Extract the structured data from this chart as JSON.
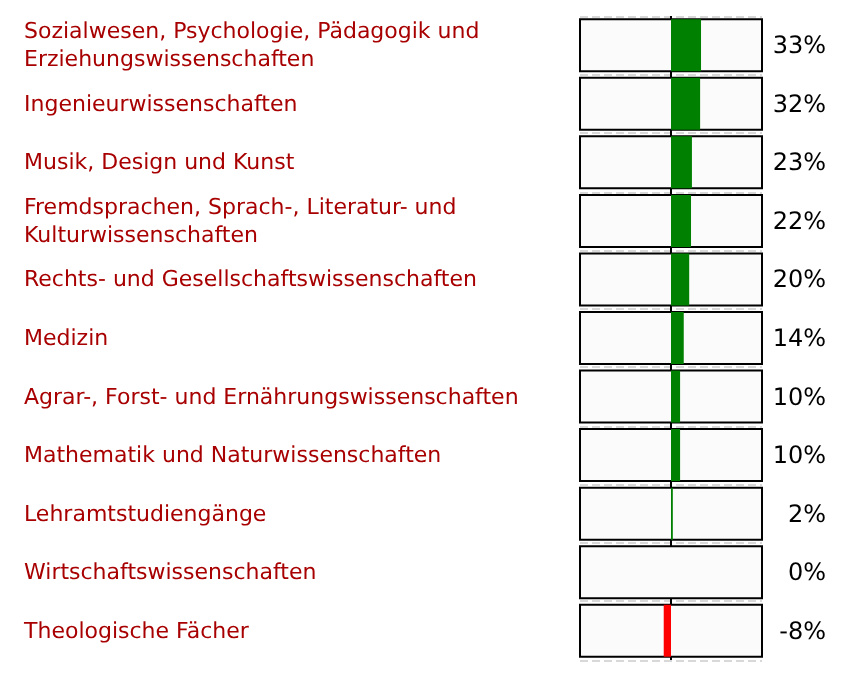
{
  "chart_data": {
    "type": "bar",
    "orientation": "horizontal",
    "categories": [
      "Sozialwesen, Psychologie, Pädagogik und Erziehungswissenschaften",
      "Ingenieurwissenschaften",
      "Musik, Design und Kunst",
      "Fremdsprachen, Sprach-, Literatur- und Kulturwissenschaften",
      "Rechts- und Gesellschaftswissenschaften",
      "Medizin",
      "Agrar-, Forst- und Ernährungswissenschaften",
      "Mathematik und Naturwissenschaften",
      "Lehramtstudiengänge",
      "Wirtschaftswissenschaften",
      "Theologische Fächer"
    ],
    "values": [
      33,
      32,
      23,
      22,
      20,
      14,
      10,
      10,
      2,
      0,
      -8
    ],
    "value_labels": [
      "33%",
      "32%",
      "23%",
      "22%",
      "20%",
      "14%",
      "10%",
      "10%",
      "2%",
      "0%",
      "-8%"
    ],
    "colors": [
      "#008000",
      "#008000",
      "#008000",
      "#008000",
      "#008000",
      "#008000",
      "#008000",
      "#008000",
      "#008000",
      "#008000",
      "#ff0000"
    ],
    "xlim": [
      -100,
      100
    ]
  }
}
